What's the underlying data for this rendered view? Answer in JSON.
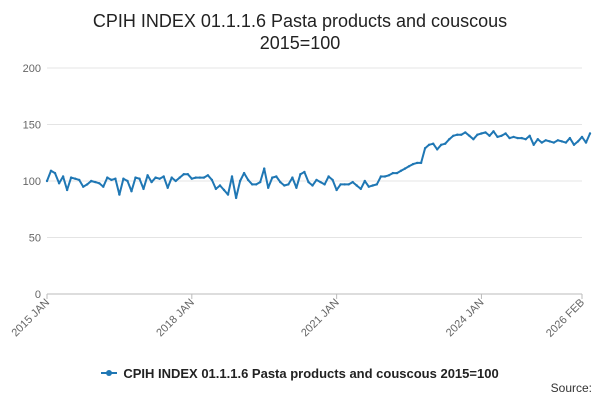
{
  "chart_data": {
    "type": "line",
    "title": "CPIH INDEX 01.1.1.6 Pasta products and couscous",
    "subtitle": "2015=100",
    "xlabel": "",
    "ylabel": "",
    "ylim": [
      0,
      200
    ],
    "yticks": [
      "0",
      "50",
      "100",
      "150",
      "200"
    ],
    "xlim": [
      "2015-01",
      "2026-02"
    ],
    "xticks": [
      {
        "date": "2015-01",
        "label": "2015 JAN"
      },
      {
        "date": "2018-01",
        "label": "2018 JAN"
      },
      {
        "date": "2021-01",
        "label": "2021 JAN"
      },
      {
        "date": "2024-01",
        "label": "2024 JAN"
      },
      {
        "date": "2026-02",
        "label": "2026 FEB"
      }
    ],
    "grid": true,
    "legend": "bottom-center",
    "color": "#1f77b4",
    "series": [
      {
        "name": "CPIH INDEX 01.1.1.6 Pasta products and couscous 2015=100",
        "values": [
          100,
          109,
          107,
          98,
          104,
          92,
          103,
          102,
          101,
          95,
          97,
          100,
          99,
          98,
          95,
          103,
          101,
          102,
          88,
          102,
          100,
          91,
          103,
          102,
          93,
          105,
          99,
          103,
          102,
          104,
          94,
          103,
          100,
          103,
          106,
          106,
          102,
          103,
          103,
          103,
          105,
          101,
          93,
          96,
          92,
          88,
          104,
          85,
          100,
          107,
          101,
          97,
          97,
          99,
          111,
          94,
          103,
          104,
          99,
          96,
          97,
          103,
          94,
          106,
          108,
          99,
          96,
          101,
          99,
          97,
          104,
          101,
          92,
          97,
          97,
          97,
          99,
          96,
          93,
          100,
          95,
          96,
          97,
          104,
          104,
          105,
          107,
          107,
          109,
          111,
          113,
          115,
          116,
          116,
          129,
          132,
          133,
          128,
          132,
          133,
          137,
          140,
          141,
          141,
          143,
          140,
          137,
          141,
          142,
          143,
          140,
          144,
          139,
          140,
          142,
          138,
          139,
          138,
          138,
          137,
          140,
          132,
          137,
          134,
          136,
          135,
          134,
          136,
          135,
          134,
          138,
          132,
          135,
          139,
          134,
          142
        ]
      }
    ]
  },
  "legend": {
    "label": "CPIH INDEX 01.1.1.6 Pasta products and couscous 2015=100"
  },
  "source": {
    "label": "Source:"
  }
}
